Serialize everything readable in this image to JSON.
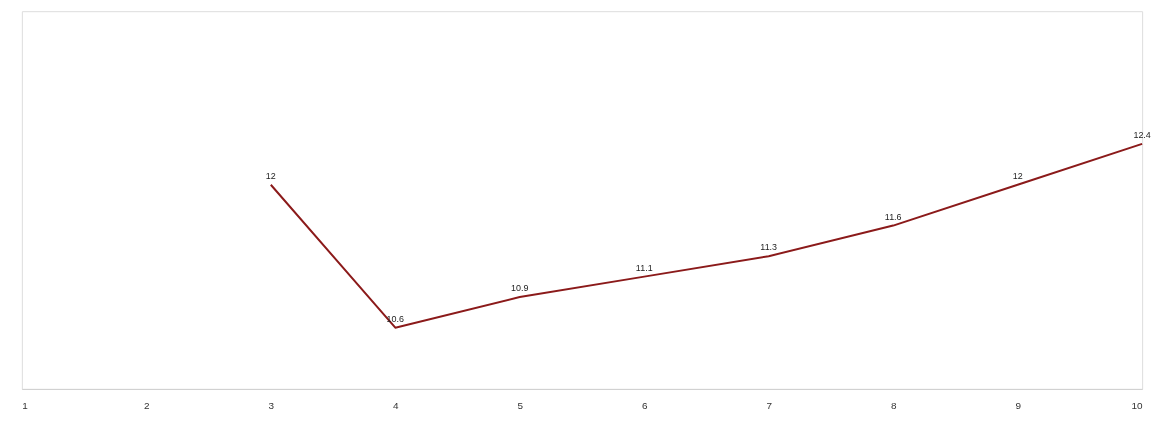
{
  "chart_data": {
    "type": "line",
    "categories": [
      "1",
      "2",
      "3",
      "4",
      "5",
      "6",
      "7",
      "8",
      "9",
      "10"
    ],
    "series": [
      {
        "color": "#8b1a1a",
        "values": [
          null,
          null,
          12,
          10.6,
          10.9,
          11.1,
          11.3,
          11.6,
          12,
          12.4
        ]
      }
    ],
    "ylim": [
      10,
      13.7
    ],
    "tick_labels": "x",
    "data_labels": true,
    "grid": false,
    "legend": false,
    "marker": "none",
    "line_style": "solid"
  }
}
